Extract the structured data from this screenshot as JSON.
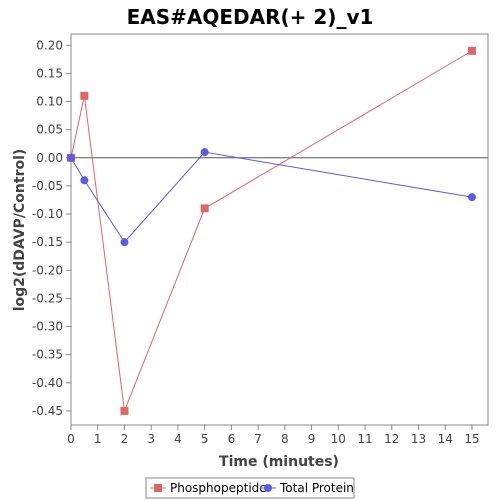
{
  "chart_data": {
    "type": "line",
    "title": "EAS#AQEDAR(+ 2)_v1",
    "xlabel": "Time (minutes)",
    "ylabel": "log2(dDAVP/Control)",
    "xlim": [
      0,
      15.6
    ],
    "ylim": [
      -0.475,
      0.22
    ],
    "x_ticks": [
      "0",
      "1",
      "2",
      "3",
      "4",
      "5",
      "6",
      "7",
      "8",
      "9",
      "10",
      "11",
      "12",
      "13",
      "14",
      "15"
    ],
    "y_ticks": [
      "0.20",
      "0.15",
      "0.10",
      "0.05",
      "0.00",
      "-0.05",
      "-0.10",
      "-0.15",
      "-0.20",
      "-0.25",
      "-0.30",
      "-0.35",
      "-0.40",
      "-0.45"
    ],
    "zero_line": true,
    "grid": false,
    "legend_position": "bottom",
    "series": [
      {
        "name": "Phosphopeptide",
        "color": "#e06666",
        "marker": "square",
        "x": [
          0,
          0.5,
          2,
          5,
          15
        ],
        "y": [
          0.0,
          0.11,
          -0.45,
          -0.09,
          0.19
        ]
      },
      {
        "name": "Total Protein",
        "color": "#5b5be6",
        "marker": "circle",
        "x": [
          0,
          0.5,
          2,
          5,
          15
        ],
        "y": [
          0.0,
          -0.04,
          -0.15,
          0.01,
          -0.07
        ]
      }
    ]
  }
}
